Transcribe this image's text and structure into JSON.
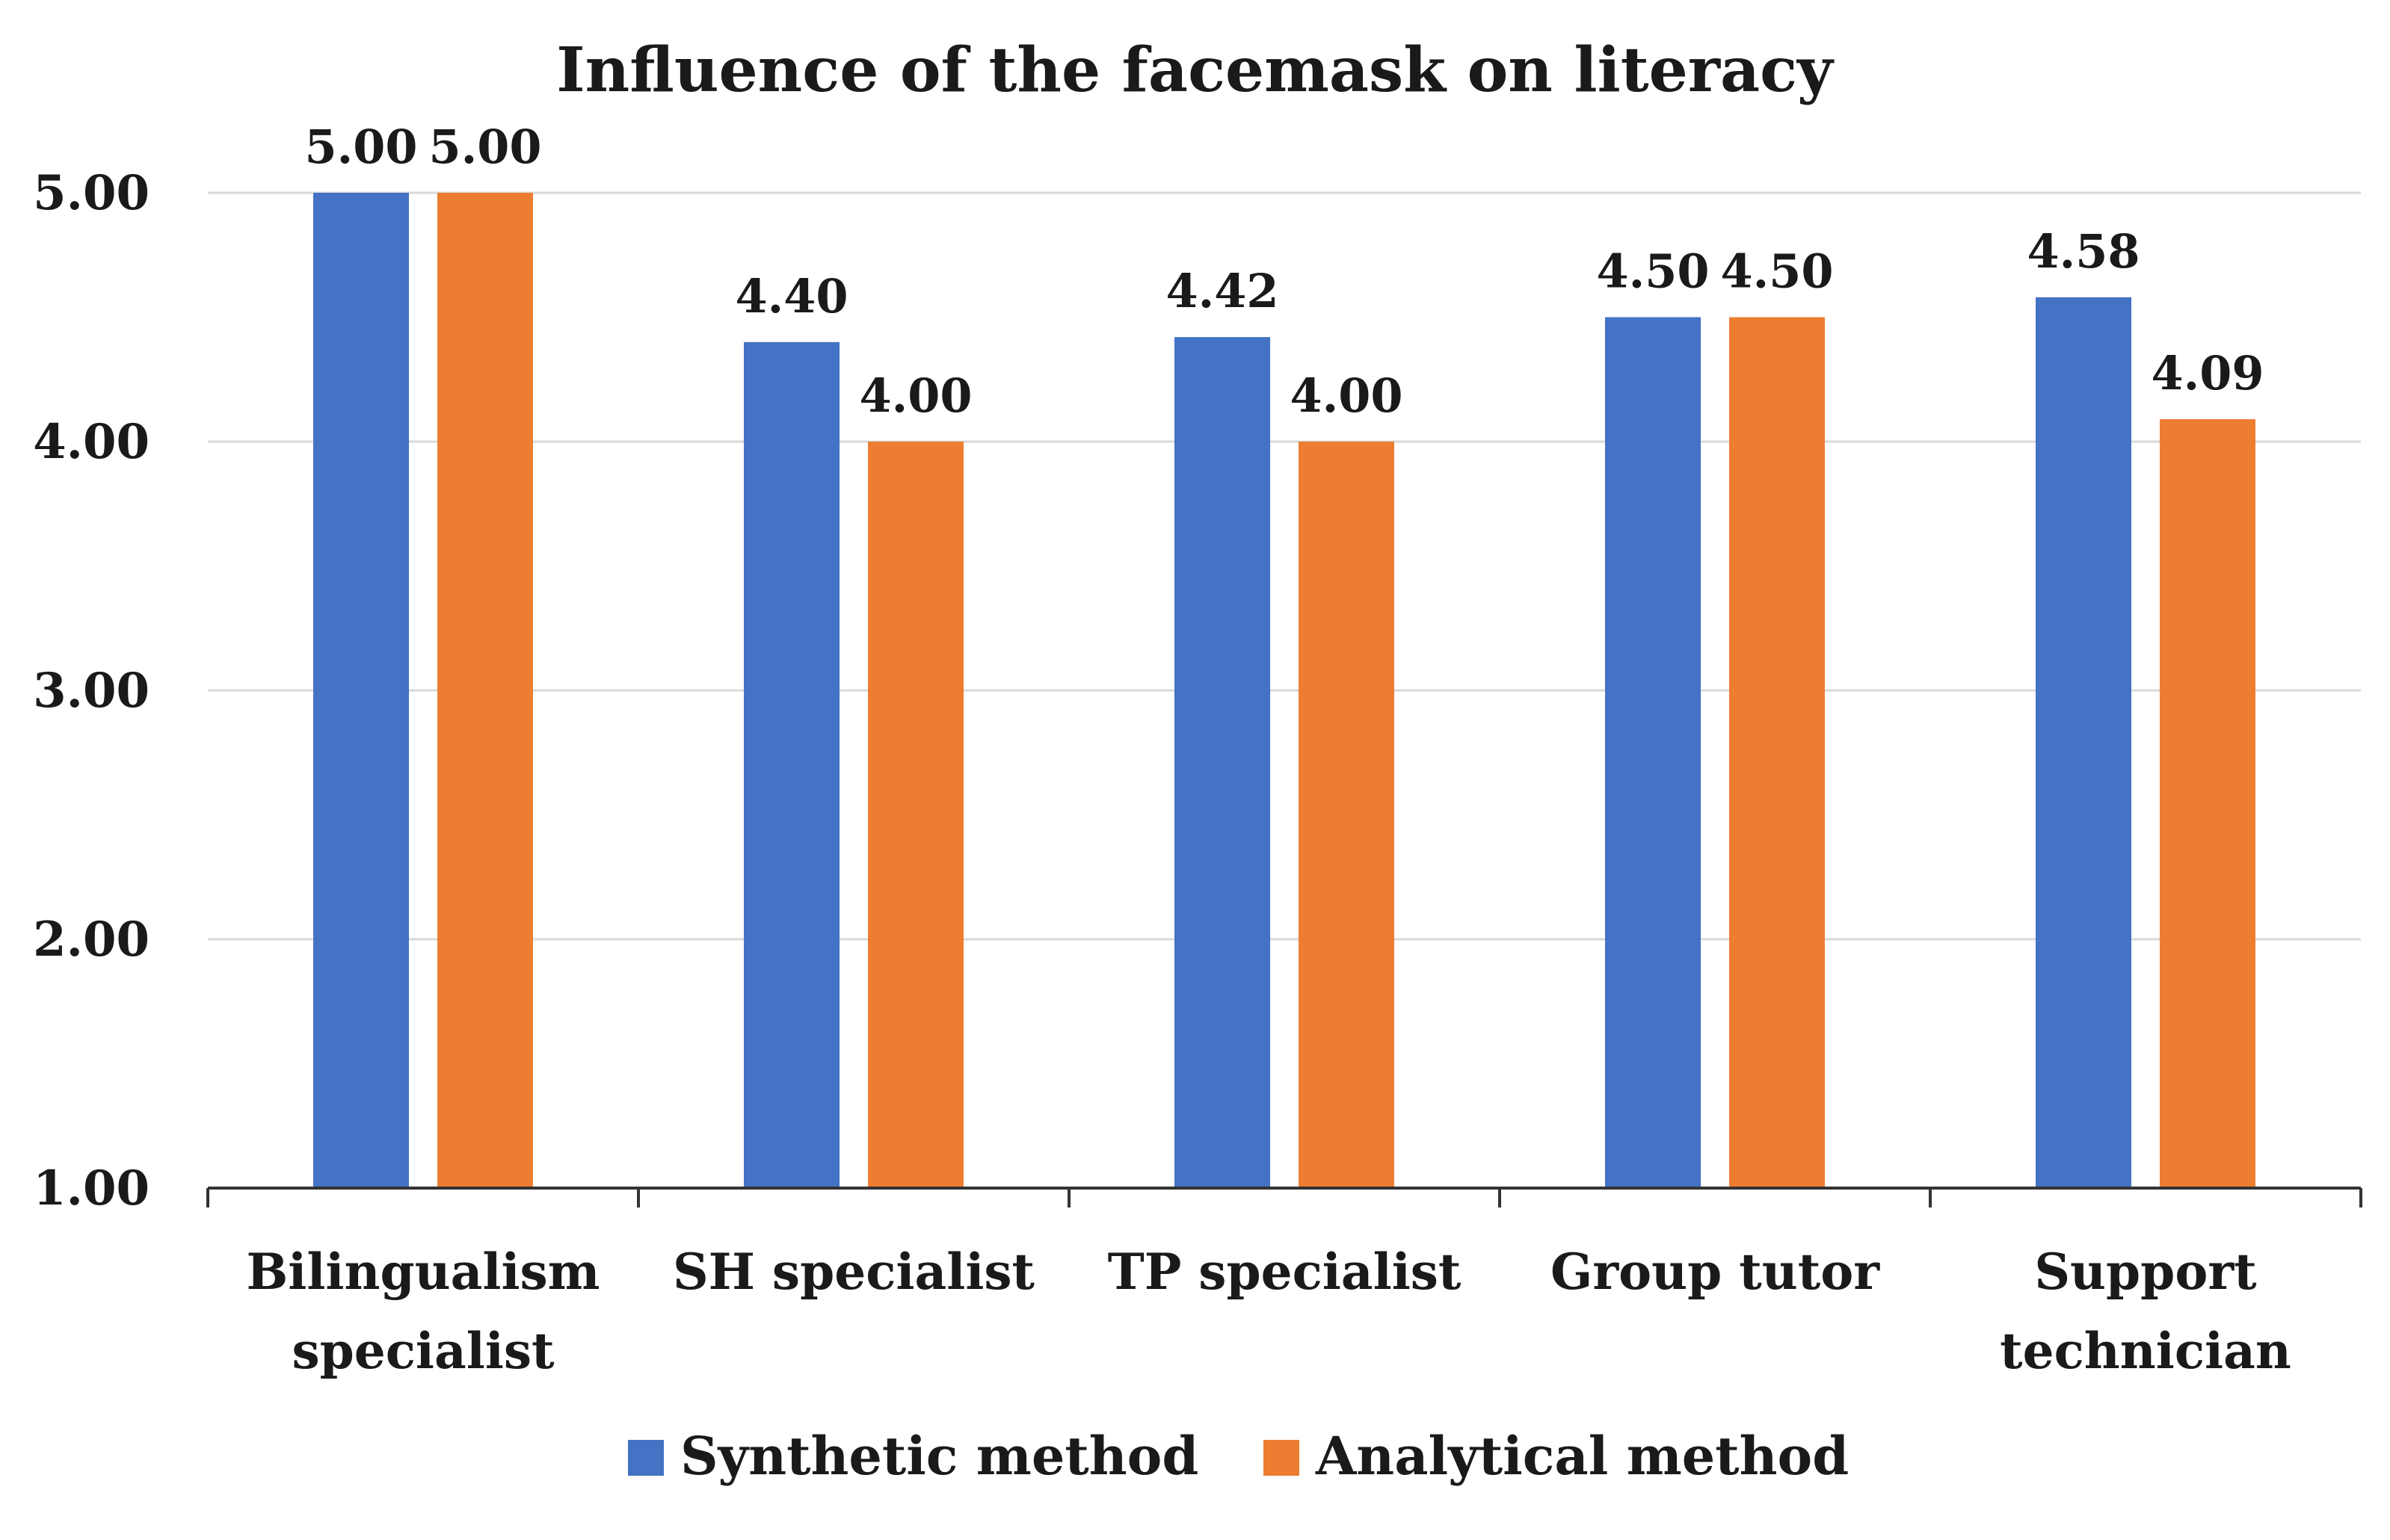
{
  "chart_data": {
    "type": "bar",
    "title": "Influence of the facemask on literacy",
    "xlabel": "",
    "ylabel": "",
    "ylim": [
      1.0,
      5.0
    ],
    "yticks": [
      "1.00",
      "2.00",
      "3.00",
      "4.00",
      "5.00"
    ],
    "grid": true,
    "legend_position": "bottom",
    "categories": [
      [
        "Bilingualism",
        "specialist"
      ],
      [
        "SH specialist"
      ],
      [
        "TP specialist"
      ],
      [
        "Group tutor"
      ],
      [
        "Support",
        "technician"
      ]
    ],
    "series": [
      {
        "name": "Synthetic method",
        "color": "#4472C4",
        "values": [
          5.0,
          4.4,
          4.42,
          4.5,
          4.58
        ],
        "labels": [
          "5.00",
          "4.40",
          "4.42",
          "4.50",
          "4.58"
        ]
      },
      {
        "name": "Analytical method",
        "color": "#ED7D31",
        "values": [
          5.0,
          4.0,
          4.0,
          4.5,
          4.09
        ],
        "labels": [
          "5.00",
          "4.00",
          "4.00",
          "4.50",
          "4.09"
        ]
      }
    ]
  }
}
